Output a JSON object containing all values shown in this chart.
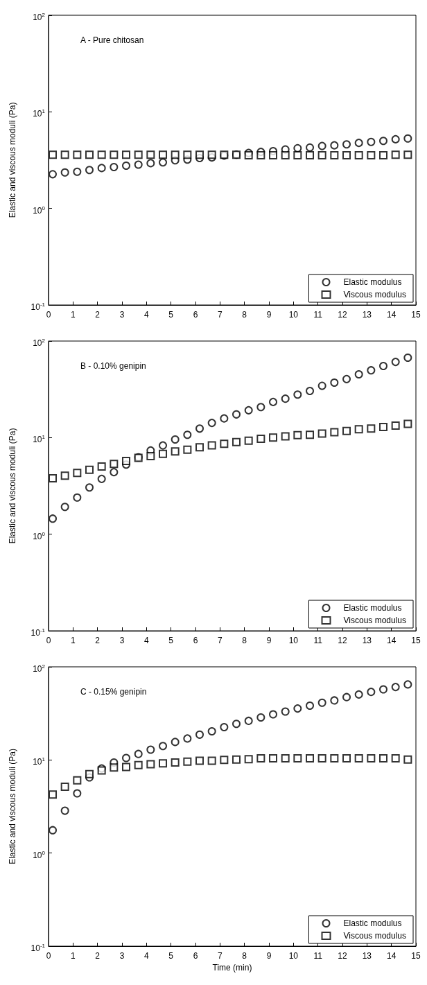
{
  "chart_data": [
    {
      "type": "scatter",
      "annotations": [
        "A - Pure chitosan"
      ],
      "ylabel": "Elastic and viscous moduli (Pa)",
      "log": "y",
      "legend": "bottom right",
      "grid": false,
      "x": [
        0.17,
        0.67,
        1.17,
        1.67,
        2.17,
        2.67,
        3.17,
        3.67,
        4.17,
        4.67,
        5.17,
        5.67,
        6.17,
        6.67,
        7.17,
        7.67,
        8.17,
        8.67,
        9.17,
        9.67,
        10.17,
        10.67,
        11.17,
        11.67,
        12.17,
        12.67,
        13.17,
        13.67,
        14.17,
        14.67
      ],
      "xlim": [
        0,
        15
      ],
      "xticks": [
        0,
        1,
        2,
        3,
        4,
        5,
        6,
        7,
        8,
        9,
        10,
        11,
        12,
        13,
        14,
        15
      ],
      "ylim": [
        0.1,
        100
      ],
      "yticks": [
        {
          "value": 0.1,
          "label": "10$^{-1}$"
        },
        {
          "value": 1,
          "label": "10$^{0}$"
        },
        {
          "value": 10,
          "label": "10$^{1}$"
        },
        {
          "value": 100,
          "label": "10$^{2}$"
        }
      ],
      "series": [
        {
          "name": "Elastic modulus",
          "color": "#000000",
          "marker": "circle",
          "values": [
            2.26,
            2.36,
            2.4,
            2.5,
            2.62,
            2.68,
            2.77,
            2.84,
            2.94,
            3.0,
            3.15,
            3.2,
            3.32,
            3.37,
            3.53,
            3.6,
            3.75,
            3.85,
            3.92,
            4.08,
            4.2,
            4.27,
            4.43,
            4.5,
            4.61,
            4.77,
            4.88,
            5.0,
            5.2,
            5.3
          ]
        },
        {
          "name": "Viscous modulus",
          "color": "#000000",
          "marker": "square",
          "values": [
            3.6,
            3.6,
            3.6,
            3.6,
            3.6,
            3.6,
            3.6,
            3.6,
            3.6,
            3.6,
            3.6,
            3.6,
            3.6,
            3.6,
            3.6,
            3.6,
            3.55,
            3.55,
            3.55,
            3.55,
            3.55,
            3.55,
            3.55,
            3.55,
            3.55,
            3.55,
            3.55,
            3.55,
            3.6,
            3.6
          ]
        }
      ]
    },
    {
      "type": "scatter",
      "annotations": [
        "B - 0.10% genipin"
      ],
      "ylabel": "Elastic and viscous moduli (Pa)",
      "log": "y",
      "legend": "bottom right",
      "grid": false,
      "x": [
        0.17,
        0.67,
        1.17,
        1.67,
        2.17,
        2.67,
        3.17,
        3.67,
        4.17,
        4.67,
        5.17,
        5.67,
        6.17,
        6.67,
        7.17,
        7.67,
        8.17,
        8.67,
        9.17,
        9.67,
        10.17,
        10.67,
        11.17,
        11.67,
        12.17,
        12.67,
        13.17,
        13.67,
        14.17,
        14.67
      ],
      "xlim": [
        0,
        15
      ],
      "xticks": [
        0,
        1,
        2,
        3,
        4,
        5,
        6,
        7,
        8,
        9,
        10,
        11,
        12,
        13,
        14,
        15
      ],
      "ylim": [
        0.1,
        100
      ],
      "yticks": [
        {
          "value": 0.1,
          "label": "10$^{-1}$"
        },
        {
          "value": 1,
          "label": "10$^{0}$"
        },
        {
          "value": 10,
          "label": "10$^{1}$"
        },
        {
          "value": 100,
          "label": "10$^{2}$"
        }
      ],
      "series": [
        {
          "name": "Elastic modulus",
          "color": "#000000",
          "marker": "circle",
          "values": [
            1.45,
            1.92,
            2.4,
            3.05,
            3.74,
            4.39,
            5.26,
            6.25,
            7.36,
            8.3,
            9.57,
            10.7,
            12.4,
            14.2,
            15.8,
            17.4,
            19.2,
            20.7,
            23.4,
            25.3,
            27.9,
            30.4,
            34.4,
            37.1,
            40.4,
            45.2,
            49.8,
            55.2,
            60.8,
            67.3
          ]
        },
        {
          "name": "Viscous modulus",
          "color": "#000000",
          "marker": "square",
          "values": [
            3.8,
            4.03,
            4.31,
            4.64,
            5.03,
            5.35,
            5.73,
            6.17,
            6.43,
            6.8,
            7.19,
            7.5,
            7.93,
            8.3,
            8.63,
            8.99,
            9.3,
            9.73,
            10.0,
            10.3,
            10.6,
            10.7,
            11.0,
            11.4,
            11.7,
            12.2,
            12.4,
            12.9,
            13.3,
            13.9
          ]
        }
      ]
    },
    {
      "type": "scatter",
      "annotations": [
        "C - 0.15% genipin"
      ],
      "xlabel": "Time (min)",
      "ylabel": "Elastic and viscous moduli (Pa)",
      "log": "y",
      "legend": "bottom right",
      "grid": false,
      "x": [
        0.17,
        0.67,
        1.17,
        1.67,
        2.17,
        2.67,
        3.17,
        3.67,
        4.17,
        4.67,
        5.17,
        5.67,
        6.17,
        6.67,
        7.17,
        7.67,
        8.17,
        8.67,
        9.17,
        9.67,
        10.17,
        10.67,
        11.17,
        11.67,
        12.17,
        12.67,
        13.17,
        13.67,
        14.17,
        14.67
      ],
      "xlim": [
        0,
        15
      ],
      "xticks": [
        0,
        1,
        2,
        3,
        4,
        5,
        6,
        7,
        8,
        9,
        10,
        11,
        12,
        13,
        14,
        15
      ],
      "ylim": [
        0.1,
        100
      ],
      "yticks": [
        {
          "value": 0.1,
          "label": "10$^{-1}$"
        },
        {
          "value": 1,
          "label": "10$^{0}$"
        },
        {
          "value": 10,
          "label": "10$^{1}$"
        },
        {
          "value": 100,
          "label": "10$^{2}$"
        }
      ],
      "series": [
        {
          "name": "Elastic modulus",
          "color": "#000000",
          "marker": "circle",
          "values": [
            1.76,
            2.85,
            4.38,
            6.5,
            8.1,
            9.4,
            10.5,
            11.6,
            12.9,
            14.1,
            15.6,
            17.0,
            18.7,
            20.3,
            22.5,
            24.4,
            26.3,
            28.6,
            30.9,
            33.1,
            35.7,
            38.3,
            41.2,
            43.6,
            47.3,
            50.5,
            53.8,
            57.3,
            60.7,
            64.7
          ]
        },
        {
          "name": "Viscous modulus",
          "color": "#000000",
          "marker": "square",
          "values": [
            4.25,
            5.15,
            6.04,
            7.05,
            7.7,
            8.3,
            8.4,
            8.8,
            9.0,
            9.2,
            9.4,
            9.6,
            9.8,
            9.8,
            10.0,
            10.1,
            10.2,
            10.4,
            10.4,
            10.4,
            10.4,
            10.4,
            10.4,
            10.4,
            10.4,
            10.4,
            10.4,
            10.4,
            10.4,
            10.1
          ]
        }
      ]
    }
  ]
}
